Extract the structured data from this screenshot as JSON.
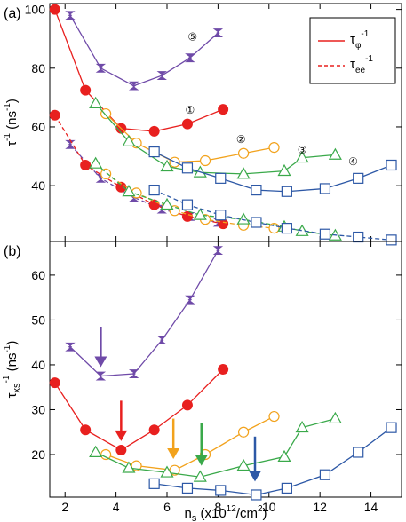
{
  "colors": {
    "red": "#e8201f",
    "purple": "#6f4aa8",
    "orange": "#f2a21c",
    "green": "#3aa94a",
    "blue": "#2d58a6",
    "axis": "#000000"
  },
  "chart_data": [
    {
      "panel_label": "(a)",
      "type": "line",
      "ylabel_main": "τ",
      "ylabel_sup": "-1",
      "ylabel_units": " (ns",
      "ylabel_units_sup": "-1",
      "ylabel_close": ")",
      "xlim": [
        1.4,
        15.2
      ],
      "ylim": [
        21,
        102
      ],
      "yticks": [
        40,
        60,
        80,
        100
      ],
      "xticks": [
        2,
        4,
        6,
        8,
        10,
        12,
        14
      ],
      "legend": [
        {
          "style": "solid",
          "label_main": "τ",
          "label_sub": "φ",
          "label_sup": "-1"
        },
        {
          "style": "dashed",
          "label_main": "τ",
          "label_sub": "ee",
          "label_sup": "-1"
        }
      ],
      "curve_labels": [
        {
          "text": "⑤",
          "series": "purple",
          "x": 7.0,
          "y": 91
        },
        {
          "text": "①",
          "series": "red",
          "x": 6.9,
          "y": 66
        },
        {
          "text": "②",
          "series": "orange",
          "x": 8.9,
          "y": 56
        },
        {
          "text": "③",
          "series": "green",
          "x": 11.3,
          "y": 52.5
        },
        {
          "text": "④",
          "series": "blue",
          "x": 13.3,
          "y": 48.5
        }
      ],
      "series": [
        {
          "color_key": "purple",
          "marker": "bowtie",
          "line": "solid",
          "x": [
            2.2,
            3.4,
            4.7,
            5.8,
            6.9,
            8.0
          ],
          "y": [
            98,
            80,
            74,
            77.5,
            83.5,
            92
          ]
        },
        {
          "color_key": "red",
          "marker": "filled-circle",
          "line": "solid",
          "x": [
            1.6,
            2.8,
            4.2,
            5.5,
            6.8,
            8.2
          ],
          "y": [
            100,
            72.5,
            59.5,
            58.5,
            61,
            66
          ]
        },
        {
          "color_key": "orange",
          "marker": "open-circle",
          "line": "solid",
          "x": [
            3.6,
            4.8,
            6.3,
            7.5,
            9.0,
            10.2
          ],
          "y": [
            64.5,
            54.5,
            48,
            48.5,
            51,
            53
          ]
        },
        {
          "color_key": "green",
          "marker": "open-triangle",
          "line": "solid",
          "x": [
            3.2,
            4.5,
            6.0,
            7.3,
            9.0,
            10.6,
            11.3,
            12.6
          ],
          "y": [
            68,
            55,
            46.5,
            44.5,
            44,
            45,
            49.5,
            50.5
          ]
        },
        {
          "color_key": "blue",
          "marker": "open-square",
          "line": "solid",
          "x": [
            5.5,
            6.8,
            8.1,
            9.5,
            10.7,
            12.2,
            13.5,
            14.8
          ],
          "y": [
            51.5,
            46,
            42.5,
            38.5,
            38,
            39,
            42.5,
            47
          ]
        },
        {
          "color_key": "purple",
          "marker": "bowtie",
          "line": "dashed",
          "x": [
            2.2,
            3.4,
            4.7,
            5.8,
            6.9,
            8.0
          ],
          "y": [
            54,
            42.5,
            36,
            32,
            29.5,
            27.5
          ]
        },
        {
          "color_key": "red",
          "marker": "filled-circle",
          "line": "dashed",
          "x": [
            1.6,
            2.8,
            4.2,
            5.5,
            6.8,
            8.2
          ],
          "y": [
            64,
            47,
            39.5,
            33.5,
            29.5,
            27
          ]
        },
        {
          "color_key": "orange",
          "marker": "open-circle",
          "line": "dashed",
          "x": [
            3.6,
            4.8,
            6.3,
            7.5,
            9.0,
            10.2
          ],
          "y": [
            44,
            37.5,
            31.5,
            28.5,
            26.5,
            25.5
          ]
        },
        {
          "color_key": "green",
          "marker": "open-triangle",
          "line": "dashed",
          "x": [
            3.2,
            4.5,
            6.0,
            7.3,
            9.0,
            10.6,
            11.3,
            12.6
          ],
          "y": [
            47.5,
            38,
            33.5,
            30,
            28.5,
            26,
            24.5,
            23
          ]
        },
        {
          "color_key": "blue",
          "marker": "open-square",
          "line": "dashed",
          "x": [
            5.5,
            6.8,
            8.1,
            9.5,
            10.7,
            12.2,
            13.5,
            14.8
          ],
          "y": [
            38.5,
            33.5,
            30,
            27.5,
            25.5,
            23.5,
            22.5,
            21.5
          ]
        }
      ]
    },
    {
      "panel_label": "(b)",
      "type": "line",
      "ylabel_main": "τ",
      "ylabel_sub": "xs",
      "ylabel_sup": "-1",
      "ylabel_units": " (ns",
      "ylabel_units_sup": "-1",
      "ylabel_close": ")",
      "xlabel_main": "n",
      "xlabel_sub": "s",
      "xlabel_rest": " (x10",
      "xlabel_sup": "12",
      "xlabel_end": "/cm",
      "xlabel_sup2": "2",
      "xlabel_close": ")",
      "xlim": [
        1.4,
        15.2
      ],
      "ylim": [
        10.5,
        67.5
      ],
      "yticks": [
        20,
        30,
        40,
        50,
        60
      ],
      "xticks": [
        2,
        4,
        6,
        8,
        10,
        12,
        14
      ],
      "series": [
        {
          "color_key": "purple",
          "marker": "bowtie",
          "line": "solid",
          "x": [
            2.2,
            3.4,
            4.7,
            5.8,
            6.9,
            8.0
          ],
          "y": [
            44,
            37.5,
            38,
            45.5,
            54.5,
            65.5
          ]
        },
        {
          "color_key": "red",
          "marker": "filled-circle",
          "line": "solid",
          "x": [
            1.6,
            2.8,
            4.2,
            5.5,
            6.8,
            8.2
          ],
          "y": [
            36,
            25.5,
            21,
            25.5,
            31,
            39
          ]
        },
        {
          "color_key": "orange",
          "marker": "open-circle",
          "line": "solid",
          "x": [
            3.6,
            4.8,
            6.3,
            7.5,
            9.0,
            10.2
          ],
          "y": [
            20,
            17.5,
            16.5,
            20,
            25,
            28.5
          ]
        },
        {
          "color_key": "green",
          "marker": "open-triangle",
          "line": "solid",
          "x": [
            3.2,
            4.5,
            6.0,
            7.3,
            9.0,
            10.6,
            11.3,
            12.6
          ],
          "y": [
            20.5,
            17,
            16,
            15,
            17.5,
            19.5,
            26,
            28
          ]
        },
        {
          "color_key": "blue",
          "marker": "open-square",
          "line": "solid",
          "x": [
            5.5,
            6.8,
            8.1,
            9.5,
            10.7,
            12.2,
            13.5,
            14.8
          ],
          "y": [
            13.5,
            12.5,
            12,
            11,
            12.5,
            15.5,
            20.5,
            26
          ]
        }
      ],
      "arrows": [
        {
          "color_key": "purple",
          "x": 3.4,
          "y_top": 48.5,
          "y_tip": 39.5
        },
        {
          "color_key": "red",
          "x": 4.2,
          "y_top": 32,
          "y_tip": 23
        },
        {
          "color_key": "orange",
          "x": 6.25,
          "y_top": 28,
          "y_tip": 19
        },
        {
          "color_key": "green",
          "x": 7.35,
          "y_top": 27,
          "y_tip": 17.5
        },
        {
          "color_key": "blue",
          "x": 9.45,
          "y_top": 24,
          "y_tip": 14
        }
      ]
    }
  ]
}
